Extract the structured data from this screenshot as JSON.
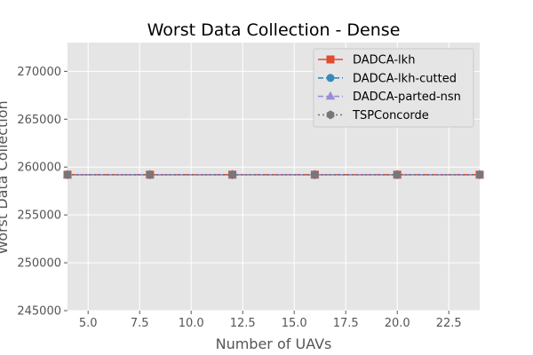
{
  "chart_data": {
    "type": "line",
    "title": "Worst Data Collection - Dense",
    "xlabel": "Number of UAVs",
    "ylabel": "Worst Data Collection",
    "xlim": [
      4,
      24
    ],
    "ylim": [
      245000,
      273000
    ],
    "xticks": [
      5.0,
      7.5,
      10.0,
      12.5,
      15.0,
      17.5,
      20.0,
      22.5
    ],
    "xtick_labels": [
      "5.0",
      "7.5",
      "10.0",
      "12.5",
      "15.0",
      "17.5",
      "20.0",
      "22.5"
    ],
    "yticks": [
      245000,
      250000,
      255000,
      260000,
      265000,
      270000
    ],
    "ytick_labels": [
      "245000",
      "250000",
      "255000",
      "260000",
      "265000",
      "270000"
    ],
    "grid": true,
    "legend_position": "top-right",
    "x": [
      4,
      8,
      12,
      16,
      20,
      24
    ],
    "series": [
      {
        "name": "DADCA-lkh",
        "values": [
          259200,
          259200,
          259200,
          259200,
          259200,
          259200
        ],
        "color": "#E24A33",
        "marker": "square",
        "linestyle": "solid"
      },
      {
        "name": "DADCA-lkh-cutted",
        "values": [
          259200,
          259200,
          259200,
          259200,
          259200,
          259200
        ],
        "color": "#348ABD",
        "marker": "circle",
        "linestyle": "dashed"
      },
      {
        "name": "DADCA-parted-nsn",
        "values": [
          259200,
          259200,
          259200,
          259200,
          259200,
          259200
        ],
        "color": "#988ED5",
        "marker": "triangle",
        "linestyle": "dashed"
      },
      {
        "name": "TSPConcorde",
        "values": [
          259200,
          259200,
          259200,
          259200,
          259200,
          259200
        ],
        "color": "#777777",
        "marker": "hexagon",
        "linestyle": "dotted"
      }
    ]
  }
}
